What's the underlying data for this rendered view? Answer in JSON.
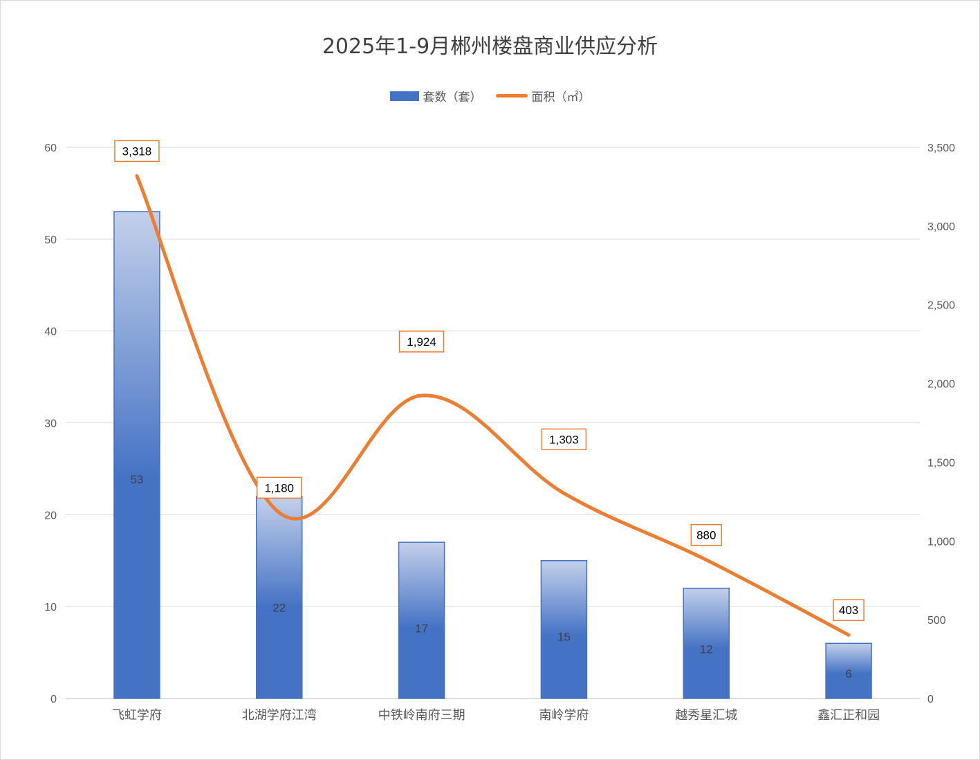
{
  "chart_data": {
    "type": "bar+line",
    "title": "2025年1-9月郴州楼盘商业供应分析",
    "categories": [
      "飞虹学府",
      "北湖学府江湾",
      "中铁岭南府三期",
      "南岭学府",
      "越秀星汇城",
      "鑫汇正和园"
    ],
    "series": [
      {
        "name": "套数（套）",
        "type": "bar",
        "axis": "left",
        "values": [
          53,
          22,
          17,
          15,
          12,
          6
        ]
      },
      {
        "name": "面积（㎡）",
        "type": "line",
        "axis": "right",
        "values": [
          3318,
          1180,
          1924,
          1303,
          880,
          403
        ]
      }
    ],
    "y_left": {
      "range": [
        0,
        60
      ],
      "ticks": [
        "0",
        "10",
        "20",
        "30",
        "40",
        "50",
        "60"
      ]
    },
    "y_right": {
      "range": [
        0,
        3500
      ],
      "ticks": [
        "0",
        "500",
        "1,000",
        "1,500",
        "2,000",
        "2,500",
        "3,000",
        "3,500"
      ]
    },
    "line_labels": [
      "3,318",
      "1,180",
      "1,924",
      "1,303",
      "880",
      "403"
    ],
    "bar_labels": [
      "53",
      "22",
      "17",
      "15",
      "12",
      "6"
    ],
    "grid": true,
    "legend_position": "top",
    "colors": {
      "bar": "#4472c4",
      "line": "#ed7d31",
      "label_border": "#ed7d31",
      "grid": "#d9d9d9"
    }
  }
}
